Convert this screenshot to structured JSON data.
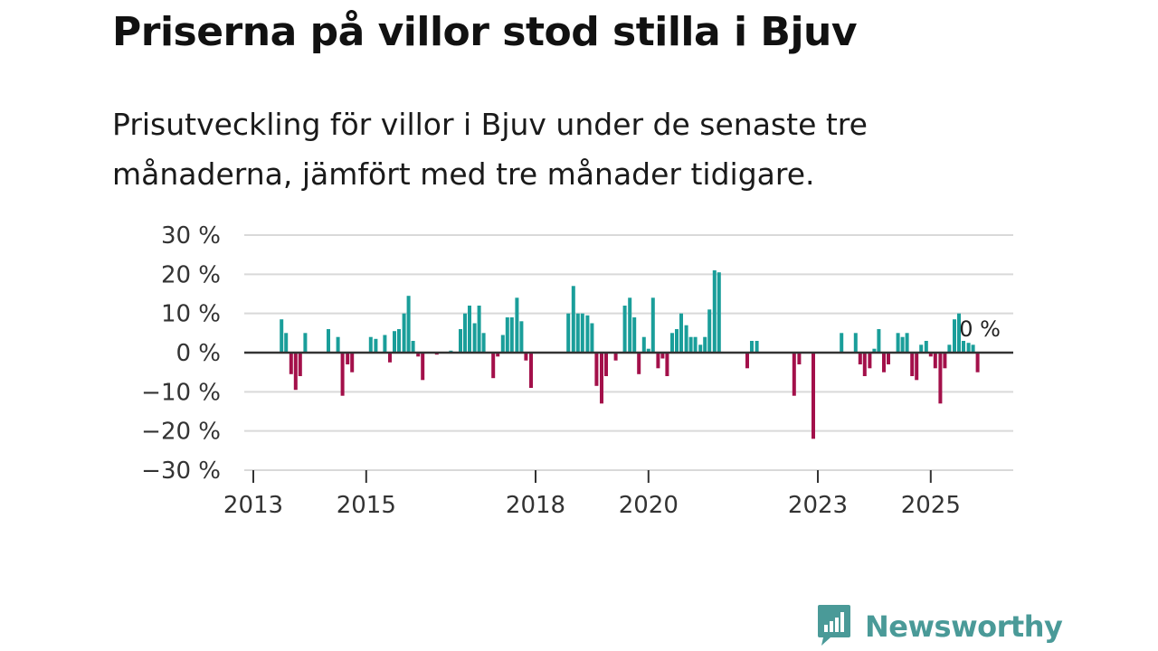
{
  "title": "Priserna på villor stod stilla i Bjuv",
  "subtitle": "Prisutveckling för villor i Bjuv under de senaste tre månaderna, jämfört med tre månader tidigare.",
  "logo": {
    "text": "Newsworthy",
    "icon": "bar-chart-speech-bubble-icon"
  },
  "colors": {
    "positive": "#1a9e9a",
    "negative": "#a3104a",
    "grid": "#d9d9d9",
    "zero": "#333333",
    "logo": "#4a9a98"
  },
  "chart_data": {
    "type": "bar",
    "title": "Priserna på villor stod stilla i Bjuv",
    "ylabel": "",
    "xlabel": "",
    "ylim": [
      -30,
      30
    ],
    "yticks": [
      30,
      20,
      10,
      0,
      -10,
      -20,
      -30
    ],
    "ytick_labels": [
      "30 %",
      "20 %",
      "10 %",
      "0 %",
      "−10 %",
      "−20 %",
      "−30 %"
    ],
    "xticks": [
      2013,
      2015,
      2018,
      2020,
      2023,
      2025
    ],
    "xtick_labels": [
      "2013",
      "2015",
      "2018",
      "2020",
      "2023",
      "2025"
    ],
    "xlim": [
      2013,
      2026.6
    ],
    "last_value_label": "0 %",
    "points": [
      {
        "x": 2013.5,
        "v": 8.5
      },
      {
        "x": 2013.58,
        "v": 5
      },
      {
        "x": 2013.67,
        "v": -5.5
      },
      {
        "x": 2013.75,
        "v": -9.5
      },
      {
        "x": 2013.83,
        "v": -6
      },
      {
        "x": 2013.92,
        "v": 5
      },
      {
        "x": 2014.33,
        "v": 6
      },
      {
        "x": 2014.5,
        "v": 4
      },
      {
        "x": 2014.58,
        "v": -11
      },
      {
        "x": 2014.67,
        "v": -3
      },
      {
        "x": 2014.75,
        "v": -5
      },
      {
        "x": 2015.08,
        "v": 4
      },
      {
        "x": 2015.17,
        "v": 3.5
      },
      {
        "x": 2015.33,
        "v": 4.5
      },
      {
        "x": 2015.42,
        "v": -2.5
      },
      {
        "x": 2015.5,
        "v": 5.5
      },
      {
        "x": 2015.58,
        "v": 6
      },
      {
        "x": 2015.67,
        "v": 10
      },
      {
        "x": 2015.75,
        "v": 14.5
      },
      {
        "x": 2015.83,
        "v": 3
      },
      {
        "x": 2015.92,
        "v": -1
      },
      {
        "x": 2016.0,
        "v": -7
      },
      {
        "x": 2016.25,
        "v": -0.5
      },
      {
        "x": 2016.5,
        "v": 0.5
      },
      {
        "x": 2016.67,
        "v": 6
      },
      {
        "x": 2016.75,
        "v": 10
      },
      {
        "x": 2016.83,
        "v": 12
      },
      {
        "x": 2016.92,
        "v": 7.5
      },
      {
        "x": 2017.0,
        "v": 12
      },
      {
        "x": 2017.08,
        "v": 5
      },
      {
        "x": 2017.25,
        "v": -6.5
      },
      {
        "x": 2017.33,
        "v": -1
      },
      {
        "x": 2017.42,
        "v": 4.5
      },
      {
        "x": 2017.5,
        "v": 9
      },
      {
        "x": 2017.58,
        "v": 9
      },
      {
        "x": 2017.67,
        "v": 14
      },
      {
        "x": 2017.75,
        "v": 8
      },
      {
        "x": 2017.83,
        "v": -2
      },
      {
        "x": 2017.92,
        "v": -9
      },
      {
        "x": 2018.58,
        "v": 10
      },
      {
        "x": 2018.67,
        "v": 17
      },
      {
        "x": 2018.75,
        "v": 10
      },
      {
        "x": 2018.83,
        "v": 10
      },
      {
        "x": 2018.92,
        "v": 9.5
      },
      {
        "x": 2019.0,
        "v": 7.5
      },
      {
        "x": 2019.08,
        "v": -8.5
      },
      {
        "x": 2019.17,
        "v": -13
      },
      {
        "x": 2019.25,
        "v": -6
      },
      {
        "x": 2019.42,
        "v": -2
      },
      {
        "x": 2019.58,
        "v": 12
      },
      {
        "x": 2019.67,
        "v": 14
      },
      {
        "x": 2019.75,
        "v": 9
      },
      {
        "x": 2019.83,
        "v": -5.5
      },
      {
        "x": 2019.92,
        "v": 4
      },
      {
        "x": 2020.0,
        "v": 1
      },
      {
        "x": 2020.08,
        "v": 14
      },
      {
        "x": 2020.17,
        "v": -4
      },
      {
        "x": 2020.25,
        "v": -1.5
      },
      {
        "x": 2020.33,
        "v": -6
      },
      {
        "x": 2020.42,
        "v": 5
      },
      {
        "x": 2020.5,
        "v": 6
      },
      {
        "x": 2020.58,
        "v": 10
      },
      {
        "x": 2020.67,
        "v": 7
      },
      {
        "x": 2020.75,
        "v": 4
      },
      {
        "x": 2020.83,
        "v": 4
      },
      {
        "x": 2020.92,
        "v": 2
      },
      {
        "x": 2021.0,
        "v": 4
      },
      {
        "x": 2021.08,
        "v": 11
      },
      {
        "x": 2021.17,
        "v": 21
      },
      {
        "x": 2021.25,
        "v": 20.5
      },
      {
        "x": 2021.75,
        "v": -4
      },
      {
        "x": 2021.83,
        "v": 3
      },
      {
        "x": 2021.92,
        "v": 3
      },
      {
        "x": 2022.58,
        "v": -11
      },
      {
        "x": 2022.67,
        "v": -3
      },
      {
        "x": 2022.92,
        "v": -22
      },
      {
        "x": 2023.42,
        "v": 5
      },
      {
        "x": 2023.67,
        "v": 5
      },
      {
        "x": 2023.75,
        "v": -3
      },
      {
        "x": 2023.83,
        "v": -6
      },
      {
        "x": 2023.92,
        "v": -4
      },
      {
        "x": 2024.0,
        "v": 1
      },
      {
        "x": 2024.08,
        "v": 6
      },
      {
        "x": 2024.17,
        "v": -5
      },
      {
        "x": 2024.25,
        "v": -3
      },
      {
        "x": 2024.42,
        "v": 5
      },
      {
        "x": 2024.5,
        "v": 4
      },
      {
        "x": 2024.58,
        "v": 5
      },
      {
        "x": 2024.67,
        "v": -6
      },
      {
        "x": 2024.75,
        "v": -7
      },
      {
        "x": 2024.83,
        "v": 2
      },
      {
        "x": 2024.92,
        "v": 3
      },
      {
        "x": 2025.0,
        "v": -1
      },
      {
        "x": 2025.08,
        "v": -4
      },
      {
        "x": 2025.17,
        "v": -13
      },
      {
        "x": 2025.25,
        "v": -4
      },
      {
        "x": 2025.33,
        "v": 2
      },
      {
        "x": 2025.42,
        "v": 8.5
      },
      {
        "x": 2025.5,
        "v": 10
      },
      {
        "x": 2025.58,
        "v": 3
      },
      {
        "x": 2025.67,
        "v": 2.5
      },
      {
        "x": 2025.75,
        "v": 2
      },
      {
        "x": 2025.83,
        "v": -5
      },
      {
        "x": 2025.92,
        "v": 0
      }
    ]
  }
}
